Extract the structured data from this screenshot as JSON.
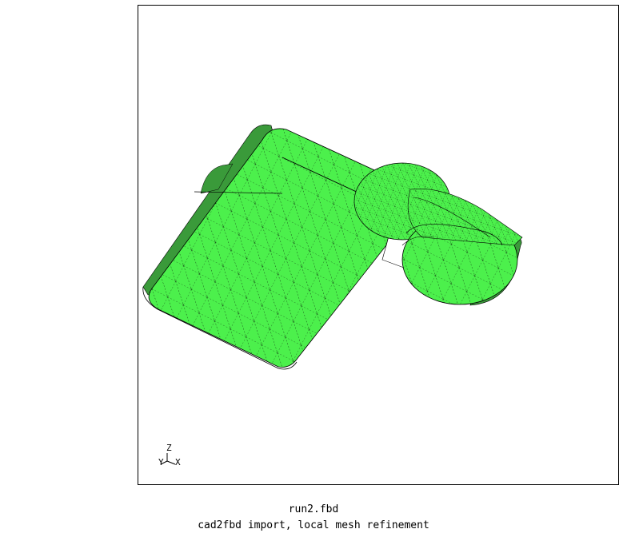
{
  "viewport": {
    "mesh_fill_color": "#4cf04c",
    "mesh_line_color": "#000000",
    "shadow_color": "#3a9a3a"
  },
  "axes": {
    "z_label": "Z",
    "y_label": "Y",
    "x_label": "X"
  },
  "captions": {
    "filename": "run2.fbd",
    "description": "cad2fbd import, local mesh refinement"
  }
}
